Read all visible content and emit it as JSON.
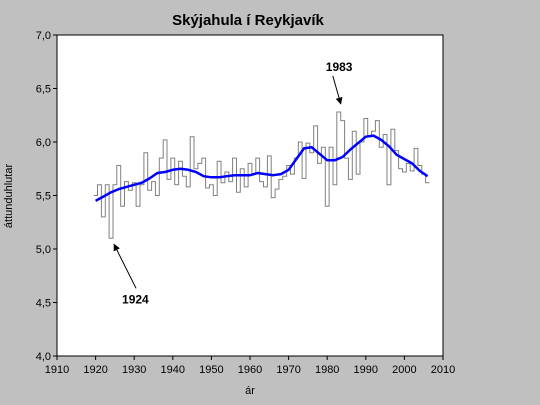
{
  "chart_data": {
    "type": "line",
    "title": "Skýjahula í Reykjavík",
    "xlabel": "ár",
    "ylabel": "áttunduhlutar",
    "xlim": [
      1910,
      2010
    ],
    "ylim": [
      4.0,
      7.0
    ],
    "xticks": [
      1910,
      1920,
      1930,
      1940,
      1950,
      1960,
      1970,
      1980,
      1990,
      2000,
      2010
    ],
    "yticks": [
      "4,0",
      "4,5",
      "5,0",
      "5,5",
      "6,0",
      "6,5",
      "7,0"
    ],
    "yticks_values": [
      4.0,
      4.5,
      5.0,
      5.5,
      6.0,
      6.5,
      7.0
    ],
    "grid": false,
    "legend": "none",
    "series": [
      {
        "style": "step",
        "color": "#808080",
        "x": [
          1920,
          1921,
          1922,
          1923,
          1924,
          1925,
          1926,
          1927,
          1928,
          1929,
          1930,
          1931,
          1932,
          1933,
          1934,
          1935,
          1936,
          1937,
          1938,
          1939,
          1940,
          1941,
          1942,
          1943,
          1944,
          1945,
          1946,
          1947,
          1948,
          1949,
          1950,
          1951,
          1952,
          1953,
          1954,
          1955,
          1956,
          1957,
          1958,
          1959,
          1960,
          1961,
          1962,
          1963,
          1964,
          1965,
          1966,
          1967,
          1968,
          1969,
          1970,
          1971,
          1972,
          1973,
          1974,
          1975,
          1976,
          1977,
          1978,
          1979,
          1980,
          1981,
          1982,
          1983,
          1984,
          1985,
          1986,
          1987,
          1988,
          1989,
          1990,
          1991,
          1992,
          1993,
          1994,
          1995,
          1996,
          1997,
          1998,
          1999,
          2000,
          2001,
          2002,
          2003,
          2004,
          2005,
          2006
        ],
        "values": [
          5.5,
          5.6,
          5.3,
          5.6,
          5.1,
          5.6,
          5.78,
          5.4,
          5.63,
          5.55,
          5.62,
          5.4,
          5.6,
          5.9,
          5.55,
          5.63,
          5.5,
          5.85,
          6.02,
          5.65,
          5.85,
          5.6,
          5.82,
          5.68,
          5.58,
          6.05,
          5.75,
          5.8,
          5.85,
          5.57,
          5.6,
          5.5,
          5.82,
          5.62,
          5.72,
          5.63,
          5.85,
          5.53,
          5.75,
          5.58,
          5.8,
          5.7,
          5.85,
          5.63,
          5.58,
          5.87,
          5.48,
          5.56,
          5.65,
          5.68,
          5.78,
          5.7,
          5.85,
          6.0,
          5.66,
          5.99,
          5.9,
          6.15,
          5.8,
          5.95,
          5.4,
          5.95,
          5.6,
          6.28,
          6.2,
          5.85,
          5.65,
          6.1,
          5.7,
          6.0,
          6.22,
          6.05,
          6.1,
          6.2,
          5.95,
          6.07,
          5.6,
          6.12,
          5.92,
          5.75,
          5.72,
          5.8,
          5.73,
          5.94,
          5.78,
          5.7,
          5.62
        ]
      },
      {
        "style": "smooth",
        "color": "#0000ff",
        "x": [
          1920,
          1922,
          1924,
          1926,
          1928,
          1930,
          1932,
          1934,
          1936,
          1938,
          1940,
          1942,
          1944,
          1946,
          1948,
          1950,
          1952,
          1954,
          1956,
          1958,
          1960,
          1962,
          1964,
          1966,
          1968,
          1970,
          1972,
          1974,
          1976,
          1978,
          1980,
          1982,
          1984,
          1986,
          1988,
          1990,
          1992,
          1994,
          1996,
          1998,
          2000,
          2002,
          2004,
          2006
        ],
        "values": [
          5.45,
          5.49,
          5.53,
          5.56,
          5.58,
          5.6,
          5.62,
          5.66,
          5.71,
          5.72,
          5.74,
          5.75,
          5.74,
          5.72,
          5.68,
          5.67,
          5.67,
          5.68,
          5.69,
          5.69,
          5.69,
          5.71,
          5.7,
          5.69,
          5.7,
          5.74,
          5.84,
          5.94,
          5.95,
          5.89,
          5.83,
          5.83,
          5.86,
          5.93,
          5.99,
          6.05,
          6.06,
          6.02,
          5.96,
          5.88,
          5.84,
          5.8,
          5.73,
          5.68
        ]
      }
    ],
    "annotations": [
      {
        "text": "1983",
        "x": 1983,
        "y": 6.3
      },
      {
        "text": "1924",
        "x": 1924,
        "y": 5.1
      }
    ]
  }
}
